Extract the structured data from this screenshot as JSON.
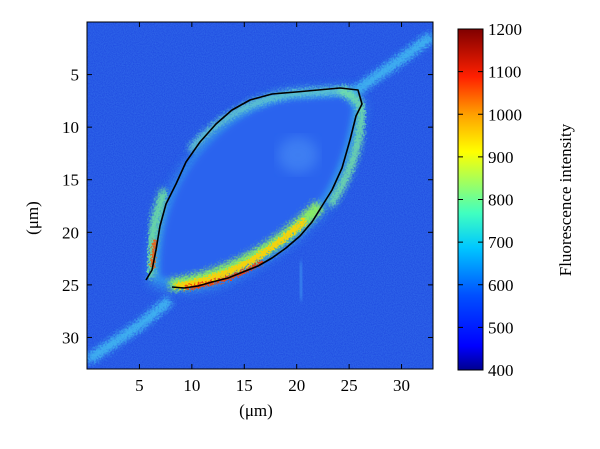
{
  "image": {
    "subject": "fluorescence micrograph of a single elongated cell with traced membrane contour",
    "colormap": "jet",
    "background_color": "#1d47e0",
    "contour_color": "#000000"
  },
  "axes": {
    "x_label": "(μm)",
    "y_label": "(μm)",
    "x_range": [
      0,
      33
    ],
    "y_range": [
      33,
      0
    ],
    "x_ticks": [
      {
        "value": 5,
        "label": "5"
      },
      {
        "value": 10,
        "label": "10"
      },
      {
        "value": 15,
        "label": "15"
      },
      {
        "value": 20,
        "label": "20"
      },
      {
        "value": 25,
        "label": "25"
      },
      {
        "value": 30,
        "label": "30"
      }
    ],
    "y_ticks": [
      {
        "value": 5,
        "label": "5"
      },
      {
        "value": 10,
        "label": "10"
      },
      {
        "value": 15,
        "label": "15"
      },
      {
        "value": 20,
        "label": "20"
      },
      {
        "value": 25,
        "label": "25"
      },
      {
        "value": 30,
        "label": "30"
      }
    ]
  },
  "colorbar": {
    "label": "Fluorescence intensity",
    "range": [
      400,
      1200
    ],
    "ticks": [
      {
        "value": 1200,
        "label": "1200"
      },
      {
        "value": 1100,
        "label": "1100"
      },
      {
        "value": 1000,
        "label": "1000"
      },
      {
        "value": 900,
        "label": "900"
      },
      {
        "value": 800,
        "label": "800"
      },
      {
        "value": 700,
        "label": "700"
      },
      {
        "value": 600,
        "label": "600"
      },
      {
        "value": 500,
        "label": "500"
      },
      {
        "value": 400,
        "label": "400"
      }
    ]
  }
}
